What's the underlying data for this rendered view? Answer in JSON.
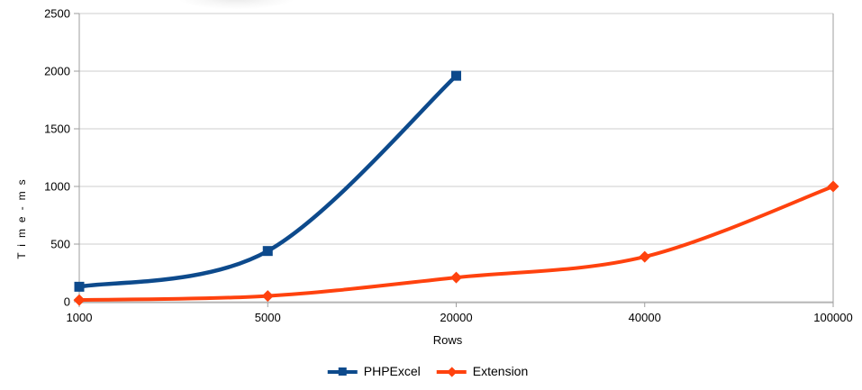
{
  "chart_data": {
    "type": "line",
    "title": "",
    "xlabel": "Rows",
    "ylabel": "Time-ms",
    "categories": [
      "1000",
      "5000",
      "20000",
      "40000",
      "100000"
    ],
    "y_ticks": [
      0,
      500,
      1000,
      1500,
      2000,
      2500
    ],
    "ylim": [
      0,
      2500
    ],
    "grid": true,
    "smooth": true,
    "legend_position": "bottom",
    "series": [
      {
        "name": "PHPExcel",
        "color": "#0d4a8c",
        "marker": "square",
        "values": [
          130,
          440,
          1960,
          null,
          null
        ]
      },
      {
        "name": "Extension",
        "color": "#ff420e",
        "marker": "diamond",
        "values": [
          15,
          50,
          210,
          390,
          1000
        ]
      }
    ]
  },
  "colors": {
    "background": "#ffffff",
    "grid": "#cccccc",
    "axis": "#9e9e9e",
    "text": "#000000"
  }
}
